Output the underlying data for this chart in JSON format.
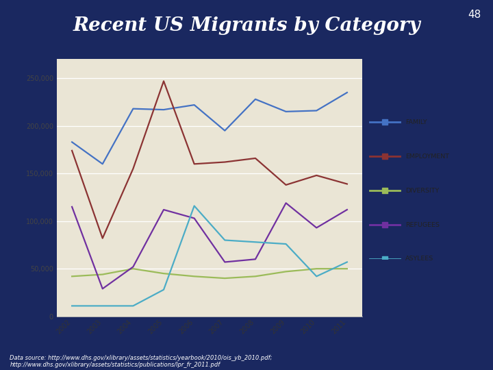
{
  "title": "Recent US Migrants by Category",
  "slide_number": "48",
  "years": [
    2002,
    2003,
    2004,
    2005,
    2006,
    2007,
    2008,
    2009,
    2010,
    2011
  ],
  "series": {
    "FAMILY": [
      183000,
      160000,
      218000,
      217000,
      222000,
      195000,
      228000,
      215000,
      216000,
      235000
    ],
    "EMPLOYMENT": [
      174000,
      82000,
      155000,
      247000,
      160000,
      162000,
      166000,
      138000,
      148000,
      139000
    ],
    "DIVERSITY": [
      42000,
      44000,
      50000,
      45000,
      42000,
      40000,
      42000,
      47000,
      50000,
      50000
    ],
    "REFUGEES": [
      115000,
      29000,
      52000,
      112000,
      103000,
      57000,
      60000,
      119000,
      93000,
      112000
    ],
    "ASYLEES": [
      11000,
      11000,
      11000,
      28000,
      116000,
      80000,
      78000,
      76000,
      42000,
      57000
    ]
  },
  "colors": {
    "FAMILY": "#4472C4",
    "EMPLOYMENT": "#8B3333",
    "DIVERSITY": "#9BBB59",
    "REFUGEES": "#7030A0",
    "ASYLEES": "#4BACC6"
  },
  "ylim": [
    0,
    270000
  ],
  "yticks": [
    0,
    50000,
    100000,
    150000,
    200000,
    250000
  ],
  "bg_color": "#EAE5D5",
  "slide_bg": "#1a2860",
  "source_text": "Data source: http://www.dhs.gov/xlibrary/assets/statistics/yearbook/2010/ois_yb_2010.pdf;\nhttp://www.dhs.gov/xlibrary/assets/statistics/publications/lpr_fr_2011.pdf"
}
